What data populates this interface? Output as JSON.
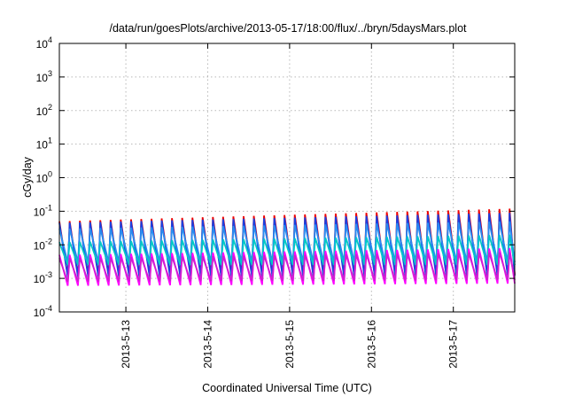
{
  "chart_data": {
    "type": "line",
    "title": "/data/run/goesPlots/archive/2013-05-17/18:00/flux/../bryn/5daysMars.plot",
    "xlabel": "Coordinated Universal Time (UTC)",
    "ylabel": "cGy/day",
    "y_scale": "log",
    "ylim": [
      0.0001,
      10000
    ],
    "y_ticks": [
      {
        "base": "10",
        "exp": "4",
        "value": 10000
      },
      {
        "base": "10",
        "exp": "3",
        "value": 1000
      },
      {
        "base": "10",
        "exp": "2",
        "value": 100
      },
      {
        "base": "10",
        "exp": "1",
        "value": 10
      },
      {
        "base": "10",
        "exp": "0",
        "value": 1
      },
      {
        "base": "10",
        "exp": "-1",
        "value": 0.1
      },
      {
        "base": "10",
        "exp": "-2",
        "value": 0.01
      },
      {
        "base": "10",
        "exp": "-3",
        "value": 0.001
      },
      {
        "base": "10",
        "exp": "-4",
        "value": 0.0001
      }
    ],
    "xlim": [
      "2013-05-12 04:30",
      "2013-05-17 18:00"
    ],
    "x_ticks": [
      "2013-5-13",
      "2013-5-14",
      "2013-5-15",
      "2013-5-16",
      "2013-5-17"
    ],
    "grid": true,
    "legend": "none",
    "cycles_per_day": 8,
    "series": [
      {
        "color": "#ee0000",
        "peak_start": 0.05,
        "peak_end": 0.12,
        "trough_start": 0.0012,
        "trough_end": 0.0013
      },
      {
        "color": "#1b3fe0",
        "peak_start": 0.045,
        "peak_end": 0.09,
        "trough_start": 0.0011,
        "trough_end": 0.0012
      },
      {
        "color": "#2a8cf0",
        "peak_start": 0.03,
        "peak_end": 0.05,
        "trough_start": 0.003,
        "trough_end": 0.003
      },
      {
        "color": "#00c8c8",
        "peak_start": 0.012,
        "peak_end": 0.02,
        "trough_start": 0.0025,
        "trough_end": 0.0025
      },
      {
        "color": "#ff00ff",
        "peak_start": 0.005,
        "peak_end": 0.008,
        "trough_start": 0.0006,
        "trough_end": 0.0007
      },
      {
        "color": "#d020d0",
        "peak_start": 0.004,
        "peak_end": 0.006,
        "trough_start": 0.0008,
        "trough_end": 0.0009
      }
    ]
  }
}
